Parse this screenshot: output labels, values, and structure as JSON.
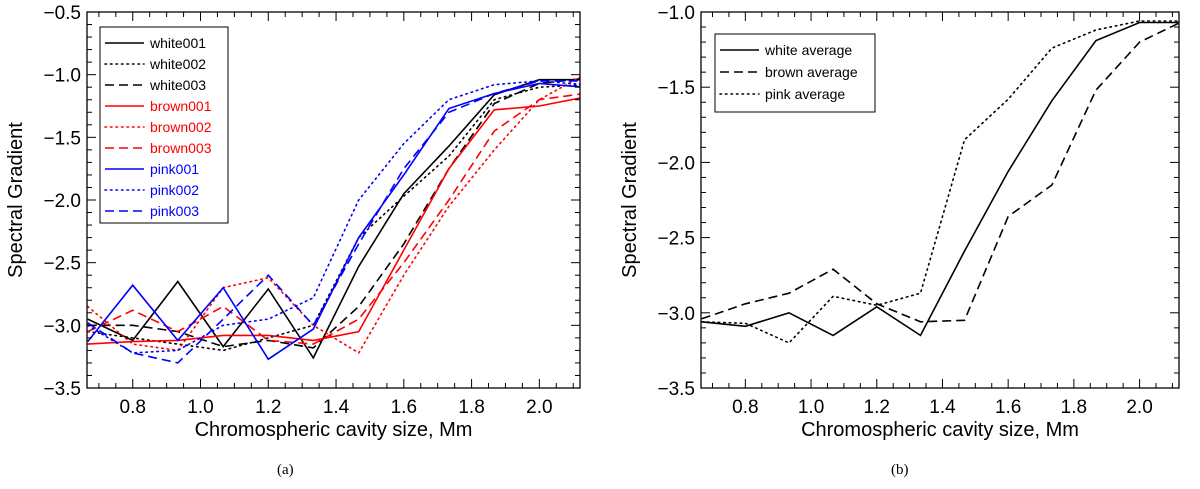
{
  "chart_data": [
    {
      "type": "line",
      "caption": "(a)",
      "xlabel": "Chromospheric cavity size, Mm",
      "ylabel": "Spectral Gradient",
      "xlim": [
        0.665,
        2.12
      ],
      "ylim": [
        -3.5,
        -0.5
      ],
      "xticks": [
        "0.8",
        "1.0",
        "1.2",
        "1.4",
        "1.6",
        "1.8",
        "2.0"
      ],
      "yticks": [
        "−0.5",
        "−1.0",
        "−1.5",
        "−2.0",
        "−2.5",
        "−3.0",
        "−3.5"
      ],
      "legend_position": "top-left",
      "x": [
        0.667,
        0.8,
        0.933,
        1.067,
        1.2,
        1.333,
        1.467,
        1.6,
        1.733,
        1.867,
        2.0,
        2.133
      ],
      "series": [
        {
          "name": "white001",
          "color": "#000000",
          "dash": "solid",
          "values": [
            -2.95,
            -3.12,
            -2.65,
            -3.17,
            -2.71,
            -3.26,
            -2.53,
            -1.95,
            -1.57,
            -1.16,
            -1.04,
            -1.04
          ]
        },
        {
          "name": "white002",
          "color": "#000000",
          "dash": "dotted",
          "values": [
            -3.05,
            -3.1,
            -3.15,
            -3.2,
            -3.1,
            -3.0,
            -2.3,
            -1.97,
            -1.65,
            -1.2,
            -1.1,
            -1.08
          ]
        },
        {
          "name": "white003",
          "color": "#000000",
          "dash": "dashed",
          "values": [
            -3.0,
            -3.0,
            -3.05,
            -3.17,
            -3.12,
            -3.18,
            -2.85,
            -2.35,
            -1.75,
            -1.23,
            -1.07,
            -1.03
          ]
        },
        {
          "name": "brown001",
          "color": "#ff0000",
          "dash": "solid",
          "values": [
            -3.15,
            -3.13,
            -3.12,
            -3.08,
            -3.08,
            -3.12,
            -3.05,
            -2.4,
            -1.75,
            -1.28,
            -1.25,
            -1.18
          ]
        },
        {
          "name": "brown002",
          "color": "#ff0000",
          "dash": "dotted",
          "values": [
            -2.85,
            -3.15,
            -3.2,
            -2.7,
            -2.62,
            -3.0,
            -3.22,
            -2.6,
            -2.05,
            -1.6,
            -1.2,
            -1.0
          ]
        },
        {
          "name": "brown003",
          "color": "#ff0000",
          "dash": "dashed",
          "values": [
            -3.05,
            -2.88,
            -3.05,
            -2.85,
            -3.12,
            -3.15,
            -2.95,
            -2.5,
            -2.0,
            -1.45,
            -1.2,
            -1.15
          ]
        },
        {
          "name": "pink001",
          "color": "#0000ff",
          "dash": "solid",
          "values": [
            -3.13,
            -2.68,
            -3.12,
            -2.7,
            -3.27,
            -3.03,
            -2.3,
            -1.8,
            -1.27,
            -1.15,
            -1.07,
            -1.1
          ]
        },
        {
          "name": "pink002",
          "color": "#0000ff",
          "dash": "dotted",
          "values": [
            -3.0,
            -3.22,
            -3.2,
            -3.0,
            -2.95,
            -2.78,
            -2.0,
            -1.55,
            -1.2,
            -1.08,
            -1.05,
            -1.08
          ]
        },
        {
          "name": "pink003",
          "color": "#0000ff",
          "dash": "dashed",
          "values": [
            -2.98,
            -3.22,
            -3.3,
            -2.95,
            -2.6,
            -3.0,
            -2.35,
            -1.75,
            -1.3,
            -1.15,
            -1.05,
            -1.05
          ]
        }
      ]
    },
    {
      "type": "line",
      "caption": "(b)",
      "xlabel": "Chromospheric cavity size, Mm",
      "ylabel": "Spectral Gradient",
      "xlim": [
        0.665,
        2.12
      ],
      "ylim": [
        -3.5,
        -1.0
      ],
      "xticks": [
        "0.8",
        "1.0",
        "1.2",
        "1.4",
        "1.6",
        "1.8",
        "2.0"
      ],
      "yticks": [
        "−1.0",
        "−1.5",
        "−2.0",
        "−2.5",
        "−3.0",
        "−3.5"
      ],
      "legend_position": "top-left",
      "x": [
        0.667,
        0.8,
        0.933,
        1.067,
        1.2,
        1.333,
        1.467,
        1.6,
        1.733,
        1.867,
        2.0,
        2.133
      ],
      "series": [
        {
          "name": "white average",
          "color": "#000000",
          "dash": "solid",
          "values": [
            -3.06,
            -3.09,
            -3.0,
            -3.15,
            -2.96,
            -3.15,
            -2.59,
            -2.06,
            -1.59,
            -1.19,
            -1.07,
            -1.07
          ]
        },
        {
          "name": "brown average",
          "color": "#000000",
          "dash": "dashed",
          "values": [
            -3.04,
            -2.94,
            -2.87,
            -2.71,
            -2.94,
            -3.06,
            -3.05,
            -2.36,
            -2.15,
            -1.52,
            -1.2,
            -1.06
          ]
        },
        {
          "name": "pink average",
          "color": "#000000",
          "dash": "dotted",
          "values": [
            -3.06,
            -3.07,
            -3.2,
            -2.89,
            -2.95,
            -2.87,
            -1.85,
            -1.58,
            -1.24,
            -1.12,
            -1.06,
            -1.06
          ]
        }
      ]
    }
  ]
}
